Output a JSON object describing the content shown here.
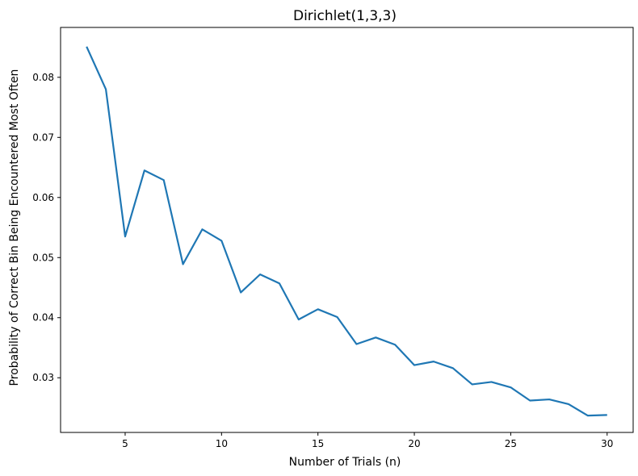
{
  "chart_data": {
    "type": "line",
    "title": "Dirichlet(1,3,3)",
    "xlabel": "Number of Trials (n)",
    "ylabel": "Probability of Correct Bin Being Encountered Most Often",
    "xlim": [
      1.65,
      31.35
    ],
    "ylim": [
      0.0209,
      0.0883
    ],
    "x_ticks": [
      5,
      10,
      15,
      20,
      25,
      30
    ],
    "x_tick_labels": [
      "5",
      "10",
      "15",
      "20",
      "25",
      "30"
    ],
    "y_ticks": [
      0.03,
      0.04,
      0.05,
      0.06,
      0.07,
      0.08
    ],
    "y_tick_labels": [
      "0.03",
      "0.04",
      "0.05",
      "0.06",
      "0.07",
      "0.08"
    ],
    "grid": false,
    "line_color": "#1f77b4",
    "series": [
      {
        "x": [
          3,
          4,
          5,
          6,
          7,
          8,
          9,
          10,
          11,
          12,
          13,
          14,
          15,
          16,
          17,
          18,
          19,
          20,
          21,
          22,
          23,
          24,
          25,
          26,
          27,
          28,
          29,
          30
        ],
        "values": [
          0.0851,
          0.078,
          0.0535,
          0.0645,
          0.0629,
          0.0489,
          0.0547,
          0.0528,
          0.0442,
          0.0472,
          0.0457,
          0.0397,
          0.0414,
          0.0401,
          0.0356,
          0.0367,
          0.0355,
          0.0321,
          0.0327,
          0.0316,
          0.0289,
          0.0293,
          0.0284,
          0.0262,
          0.0264,
          0.0256,
          0.0237,
          0.0238
        ]
      }
    ]
  }
}
